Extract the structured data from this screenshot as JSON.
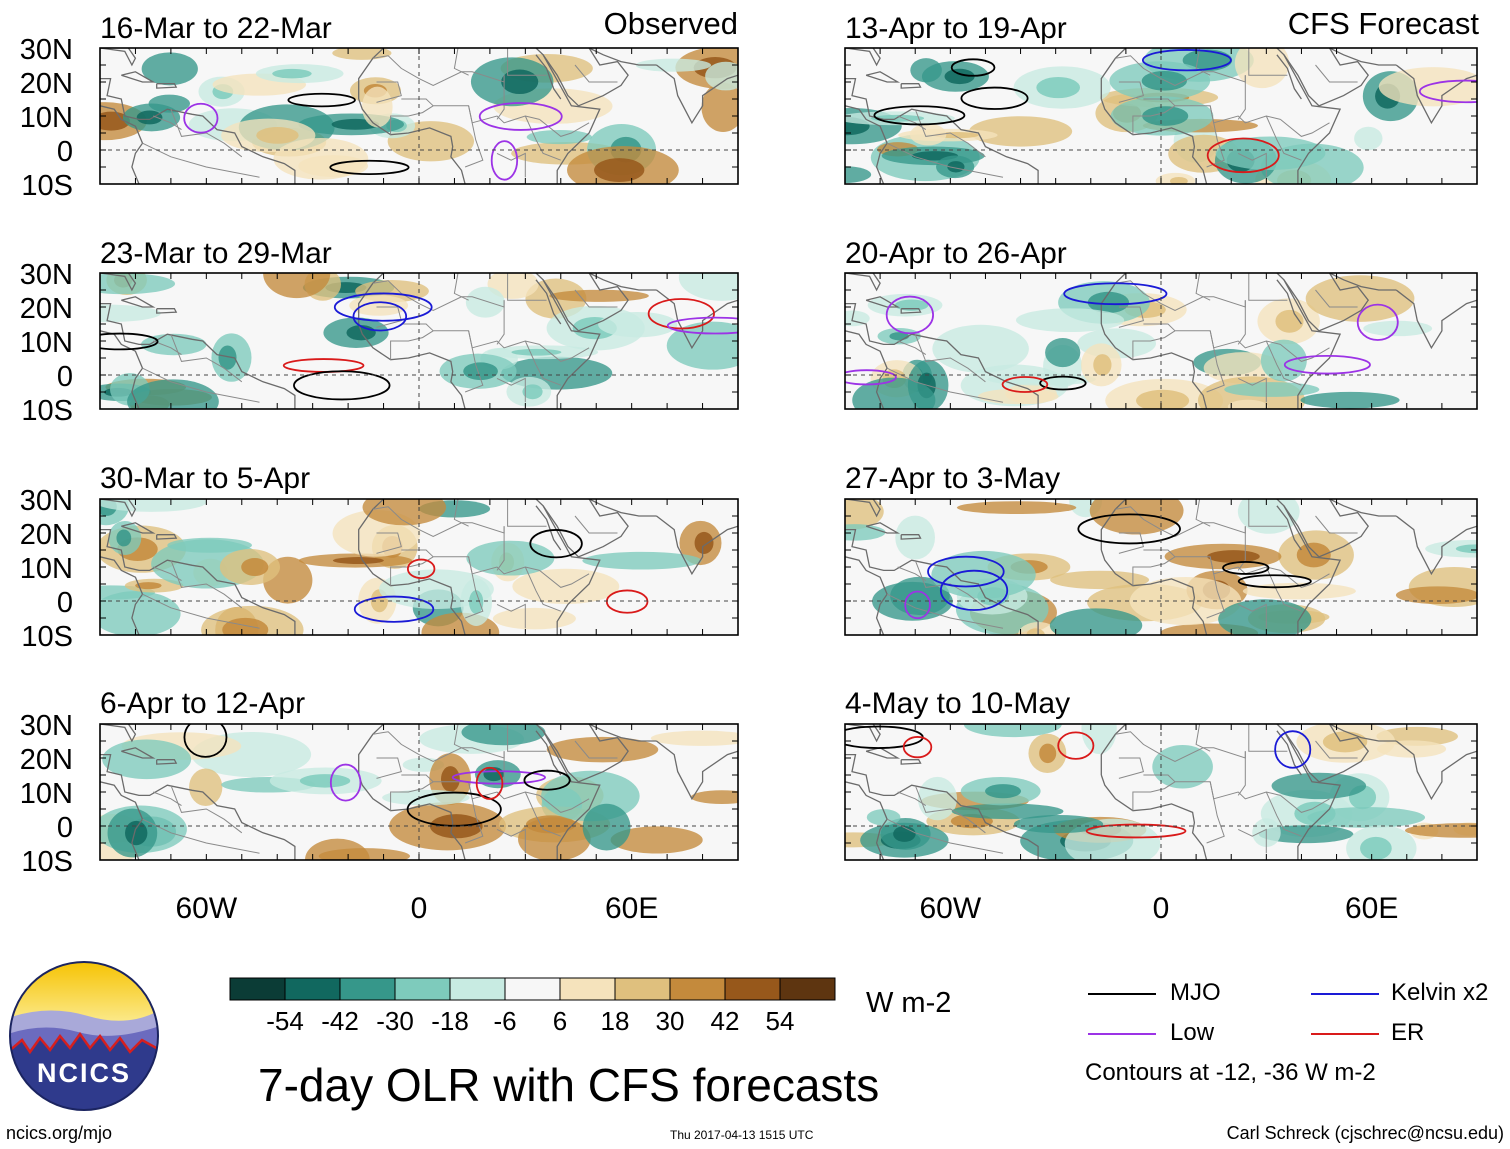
{
  "header": {
    "left_label": "Observed",
    "right_label": "CFS Forecast"
  },
  "panels": [
    {
      "dates": "16-Mar to 22-Mar",
      "kind": "observed"
    },
    {
      "dates": "23-Mar to 29-Mar",
      "kind": "observed"
    },
    {
      "dates": "30-Mar to 5-Apr",
      "kind": "observed"
    },
    {
      "dates": "6-Apr to 12-Apr",
      "kind": "observed"
    },
    {
      "dates": "13-Apr to 19-Apr",
      "kind": "forecast"
    },
    {
      "dates": "20-Apr to 26-Apr",
      "kind": "forecast"
    },
    {
      "dates": "27-Apr to 3-May",
      "kind": "forecast"
    },
    {
      "dates": "4-May to 10-May",
      "kind": "forecast"
    }
  ],
  "lat_labels": [
    "30N",
    "20N",
    "10N",
    "0",
    "10S"
  ],
  "lon_labels": [
    "60W",
    "0",
    "60E"
  ],
  "colorbar": {
    "colors": [
      "#0b3c36",
      "#11685f",
      "#36978a",
      "#7ecbbc",
      "#c8ebe2",
      "#f7f7f7",
      "#f5e3bc",
      "#dfc07e",
      "#c48a3c",
      "#97581b",
      "#5e3510"
    ],
    "ticks": [
      "-54",
      "-42",
      "-30",
      "-18",
      "-6",
      "6",
      "18",
      "30",
      "42",
      "54"
    ],
    "units": "W m-2"
  },
  "legend": {
    "items": [
      {
        "label": "MJO",
        "color": "#000000"
      },
      {
        "label": "Kelvin x2",
        "color": "#1a1ad6"
      },
      {
        "label": "Low",
        "color": "#9c33e6"
      },
      {
        "label": "ER",
        "color": "#d91a1a"
      }
    ],
    "note": "Contours at -12, -36 W m-2"
  },
  "logo": {
    "text": "NCICS"
  },
  "footer": {
    "title": "7-day OLR with CFS forecasts",
    "url": "ncics.org/mjo",
    "timestamp": "Thu 2017-04-13 1515 UTC",
    "credit": "Carl Schreck (cjschrec@ncsu.edu)"
  }
}
